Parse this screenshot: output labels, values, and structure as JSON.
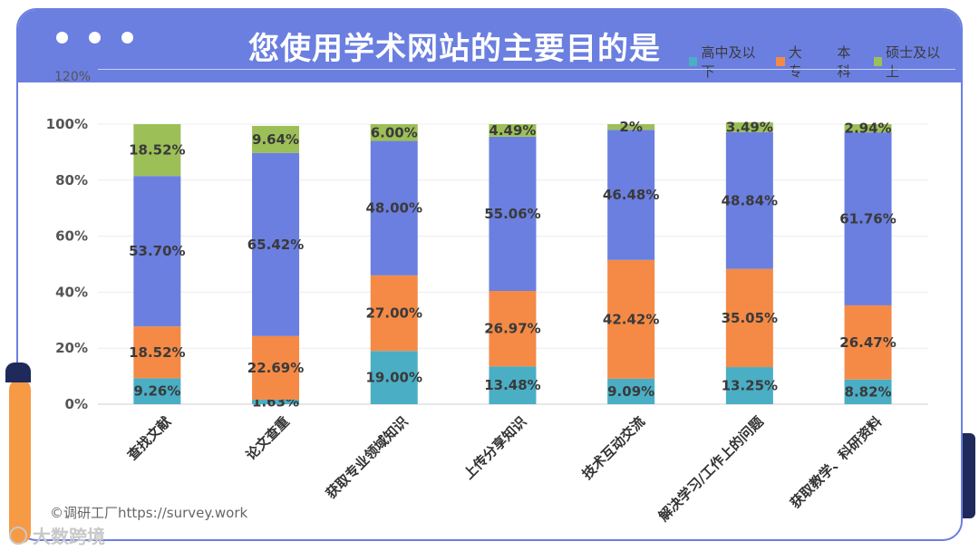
{
  "header": {
    "title": "您使用学术网站的主要目的是"
  },
  "top_tick_label": "120%",
  "watermark": "©调研工厂https://survey.work",
  "brand": "大数跨境",
  "colors": {
    "header": "#6b7fe0",
    "series": [
      "#4aaec5",
      "#f48a46",
      "#6b7fe0",
      "#9cbf58"
    ]
  },
  "chart_data": {
    "type": "bar",
    "stacked": true,
    "categories": [
      "查找文献",
      "论文查重",
      "获取专业领域知识",
      "上传分享知识",
      "技术互动交流",
      "解决学习/工作上的问题",
      "获取教学、科研资料"
    ],
    "series": [
      {
        "name": "高中及以下",
        "values": [
          9.26,
          1.63,
          19.0,
          13.48,
          9.09,
          13.25,
          8.82
        ],
        "labels": [
          "9.26%",
          "1.63%",
          "19.00%",
          "13.48%",
          "9.09%",
          "13.25%",
          "8.82%"
        ]
      },
      {
        "name": "大专",
        "values": [
          18.52,
          22.69,
          27.0,
          26.97,
          42.42,
          35.05,
          26.47
        ],
        "labels": [
          "18.52%",
          "22.69%",
          "27.00%",
          "26.97%",
          "42.42%",
          "35.05%",
          "26.47%"
        ]
      },
      {
        "name": "本科",
        "values": [
          53.7,
          65.42,
          48.0,
          55.06,
          46.48,
          48.84,
          61.76
        ],
        "labels": [
          "53.70%",
          "65.42%",
          "48.00%",
          "55.06%",
          "46.48%",
          "48.84%",
          "61.76%"
        ]
      },
      {
        "name": "硕士及以上",
        "values": [
          18.52,
          9.64,
          6.0,
          4.49,
          2.0,
          3.49,
          2.94
        ],
        "labels": [
          "18.52%",
          "9.64%",
          "6.00%",
          "4.49%",
          "2%",
          "3.49%",
          "2.94%"
        ]
      }
    ],
    "y_ticks": [
      "0%",
      "20%",
      "40%",
      "60%",
      "80%",
      "100%"
    ],
    "ylim": [
      0,
      120
    ],
    "grid": true,
    "legend": "top-right"
  }
}
